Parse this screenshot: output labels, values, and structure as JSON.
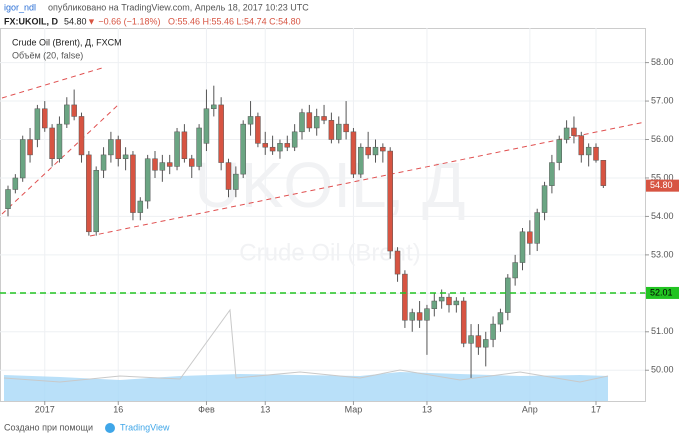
{
  "header": {
    "author": "igor_ndl",
    "published": "опубликовано на TradingView.com, Апрель 18, 2017 10:23 UTC",
    "symbol": "FX:UKOIL, D",
    "price": "54.80",
    "change": "▼ −0.66 (−1.18%)",
    "ohlc": "O:55.46 H:55.46 L:54.74 C:54.80"
  },
  "legend": {
    "series": "Crude Oil (Brent), Д, FXCM",
    "volume": "Объём (20, false)"
  },
  "watermark": {
    "symbol": "UKOIL, Д",
    "name": "Crude Oil (Brent)"
  },
  "footer": {
    "text": "Создано при помощи",
    "brand": "TradingView"
  },
  "chart_data": {
    "type": "candlestick",
    "up_color": "#6ba583",
    "down_color": "#d75442",
    "open": [
      54.2,
      54.7,
      55.0,
      56.0,
      56.0,
      56.8,
      56.3,
      55.5,
      56.4,
      56.9,
      56.6,
      55.6,
      53.6,
      55.2,
      55.6,
      56.0,
      55.5,
      55.6,
      54.1,
      54.4,
      55.5,
      55.2,
      55.4,
      55.3,
      56.2,
      55.5,
      55.3,
      55.9,
      56.8,
      56.9,
      55.4,
      54.7,
      55.1,
      56.4,
      56.6,
      55.9,
      55.8,
      55.7,
      55.9,
      55.8,
      56.2,
      56.7,
      56.3,
      56.6,
      56.5,
      56.0,
      56.4,
      56.2,
      55.1,
      55.8,
      55.6,
      55.8,
      55.7,
      53.1,
      52.5,
      51.3,
      51.5,
      51.3,
      51.6,
      51.8,
      51.9,
      51.7,
      51.8,
      50.7,
      50.9,
      50.6,
      50.8,
      51.2,
      51.5,
      52.4,
      52.8,
      53.6,
      53.3,
      54.1,
      54.8,
      55.4,
      56.0,
      56.3,
      56.1,
      55.6,
      55.8,
      55.46
    ],
    "high": [
      54.8,
      55.1,
      56.1,
      56.3,
      56.9,
      57.0,
      56.4,
      56.6,
      57.1,
      57.3,
      56.7,
      55.7,
      55.3,
      55.8,
      56.2,
      56.1,
      55.8,
      55.7,
      54.5,
      55.6,
      55.7,
      55.6,
      55.6,
      56.3,
      56.4,
      55.6,
      56.4,
      57.3,
      57.4,
      57.1,
      55.5,
      55.3,
      56.5,
      57.0,
      56.7,
      56.2,
      56.1,
      56.0,
      56.1,
      56.4,
      56.8,
      56.9,
      56.8,
      56.9,
      56.7,
      56.6,
      57.0,
      56.3,
      55.9,
      56.2,
      56.0,
      55.9,
      55.8,
      53.2,
      52.6,
      51.6,
      51.8,
      51.7,
      52.0,
      52.1,
      52.0,
      51.9,
      51.9,
      51.2,
      51.2,
      51.0,
      51.4,
      51.6,
      52.5,
      53.0,
      53.7,
      53.9,
      54.2,
      54.9,
      55.6,
      56.1,
      56.5,
      56.6,
      56.2,
      55.9,
      55.9,
      55.46
    ],
    "low": [
      54.0,
      54.6,
      54.9,
      55.4,
      55.8,
      56.2,
      55.3,
      55.4,
      56.3,
      56.5,
      55.4,
      53.5,
      53.5,
      55.0,
      55.4,
      55.3,
      55.2,
      53.9,
      53.9,
      54.2,
      55.0,
      54.9,
      55.1,
      55.2,
      55.4,
      55.0,
      55.2,
      55.7,
      56.6,
      55.2,
      54.5,
      54.5,
      55.0,
      56.1,
      55.8,
      55.6,
      55.6,
      55.5,
      55.7,
      55.7,
      56.0,
      56.2,
      56.1,
      56.4,
      55.9,
      55.9,
      56.0,
      55.0,
      55.0,
      55.5,
      55.4,
      55.4,
      52.9,
      52.3,
      51.1,
      51.0,
      51.1,
      50.4,
      51.4,
      51.6,
      51.5,
      51.5,
      50.6,
      49.8,
      50.4,
      50.1,
      50.6,
      51.0,
      51.3,
      52.2,
      52.6,
      53.0,
      53.1,
      53.9,
      54.6,
      55.2,
      55.9,
      55.9,
      55.4,
      55.3,
      55.4,
      54.74
    ],
    "close": [
      54.7,
      55.0,
      56.0,
      55.6,
      56.8,
      56.3,
      55.5,
      56.4,
      56.9,
      56.6,
      55.6,
      53.6,
      55.2,
      55.6,
      56.0,
      55.5,
      55.6,
      54.1,
      54.4,
      55.5,
      55.2,
      55.4,
      55.3,
      56.2,
      55.5,
      55.3,
      56.3,
      56.8,
      56.9,
      55.4,
      54.7,
      55.1,
      56.4,
      56.6,
      55.9,
      55.8,
      55.7,
      55.9,
      55.8,
      56.2,
      56.7,
      56.3,
      56.6,
      56.5,
      56.0,
      56.4,
      56.2,
      55.1,
      55.8,
      55.6,
      55.8,
      55.7,
      53.1,
      52.5,
      51.3,
      51.5,
      51.3,
      51.6,
      51.8,
      51.9,
      51.7,
      51.8,
      50.7,
      50.9,
      50.6,
      50.8,
      51.2,
      51.5,
      52.4,
      52.8,
      53.6,
      53.3,
      54.1,
      54.8,
      55.4,
      56.0,
      56.3,
      56.1,
      55.6,
      55.8,
      55.46,
      54.8
    ],
    "xticks": [
      {
        "value": 5,
        "label": "2017"
      },
      {
        "value": 15,
        "label": "16"
      },
      {
        "value": 27,
        "label": "Фев"
      },
      {
        "value": 35,
        "label": "13"
      },
      {
        "value": 47,
        "label": "Мар"
      },
      {
        "value": 57,
        "label": "13"
      },
      {
        "value": 71,
        "label": "Апр"
      },
      {
        "value": 80,
        "label": "17"
      }
    ],
    "ylim": [
      49.2,
      58.9
    ],
    "yticks": [
      {
        "value": 50,
        "label": "50.00"
      },
      {
        "value": 51,
        "label": "51.00"
      },
      {
        "value": 52,
        "label": "52.00"
      },
      {
        "value": 53,
        "label": "53.00"
      },
      {
        "value": 54,
        "label": "54.00"
      },
      {
        "value": 55,
        "label": "55.00"
      },
      {
        "value": 56,
        "label": "56.00"
      },
      {
        "value": 57,
        "label": "57.00"
      },
      {
        "value": 58,
        "label": "58.00"
      }
    ],
    "grid": true,
    "hline": {
      "value": 52.01,
      "label": "52.01",
      "color": "#22c422"
    },
    "price_label": {
      "value": 54.8,
      "label": "54.80"
    }
  }
}
